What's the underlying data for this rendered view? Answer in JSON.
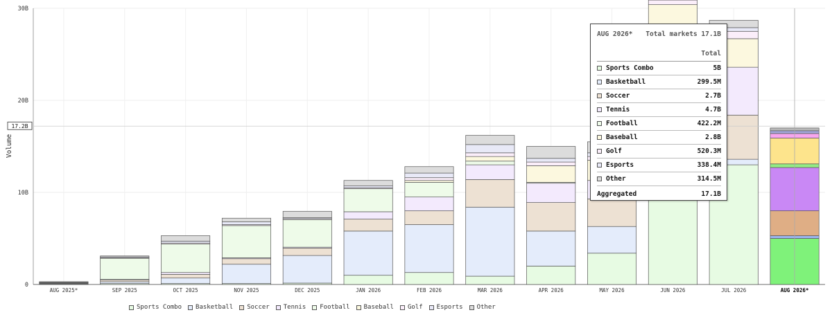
{
  "chart_data": {
    "type": "bar",
    "stacked": true,
    "ylabel": "Volume",
    "ylim": [
      0,
      30
    ],
    "yticks": [
      {
        "v": 0,
        "label": "0"
      },
      {
        "v": 10,
        "label": "10B"
      },
      {
        "v": 20,
        "label": "20B"
      },
      {
        "v": 30,
        "label": "30B"
      }
    ],
    "y_marker": {
      "value": 17.2,
      "label": "17.2B"
    },
    "categories": [
      "AUG 2025*",
      "SEP 2025",
      "OCT 2025",
      "NOV 2025",
      "DEC 2025",
      "JAN 2026",
      "FEB 2026",
      "MAR 2026",
      "APR 2026",
      "MAY 2026",
      "JUN 2026",
      "JUL 2026",
      "AUG 2026*"
    ],
    "highlighted_category": "AUG 2026*",
    "series": [
      {
        "name": "Sports Combo",
        "color": "#e7fbe3",
        "highlight_color": "#7ff27a",
        "values": [
          0.05,
          0.1,
          0.1,
          0.1,
          0.15,
          1.0,
          1.3,
          0.9,
          2.0,
          3.4,
          18.5,
          13.0,
          5.0
        ]
      },
      {
        "name": "Basketball",
        "color": "#e4ecfb",
        "highlight_color": "#9bb4f0",
        "values": [
          0.05,
          0.2,
          0.6,
          2.1,
          3.0,
          4.8,
          5.2,
          7.5,
          3.8,
          2.9,
          0.3,
          0.6,
          0.3
        ]
      },
      {
        "name": "Soccer",
        "color": "#ede1d3",
        "highlight_color": "#dfae85",
        "values": [
          0.05,
          0.2,
          0.4,
          0.6,
          0.8,
          1.3,
          1.5,
          3.0,
          3.1,
          3.0,
          3.2,
          4.8,
          2.7
        ]
      },
      {
        "name": "Tennis",
        "color": "#f3eafd",
        "highlight_color": "#c988f5",
        "values": [
          0.0,
          0.05,
          0.2,
          0.1,
          0.1,
          0.8,
          1.5,
          1.6,
          2.1,
          2.0,
          5.6,
          5.2,
          4.7
        ]
      },
      {
        "name": "Football",
        "color": "#eefbe9",
        "highlight_color": "#93ec84",
        "values": [
          0.05,
          2.3,
          3.1,
          3.5,
          3.0,
          2.5,
          1.6,
          0.4,
          0.1,
          0.0,
          0.0,
          0.0,
          0.4
        ]
      },
      {
        "name": "Baseball",
        "color": "#fcf8df",
        "highlight_color": "#fde48c",
        "values": [
          0.0,
          0.0,
          0.0,
          0.0,
          0.0,
          0.0,
          0.2,
          0.5,
          1.8,
          2.2,
          2.8,
          3.1,
          2.8
        ]
      },
      {
        "name": "Golf",
        "color": "#fbeefa",
        "highlight_color": "#f7a6ee",
        "values": [
          0.0,
          0.05,
          0.1,
          0.1,
          0.1,
          0.1,
          0.3,
          0.4,
          0.4,
          0.4,
          0.5,
          0.8,
          0.5
        ]
      },
      {
        "name": "Esports",
        "color": "#e8e9f7",
        "highlight_color": "#a4a8dc",
        "values": [
          0.05,
          0.1,
          0.2,
          0.3,
          0.1,
          0.2,
          0.5,
          0.9,
          0.4,
          0.4,
          0.5,
          0.4,
          0.3
        ]
      },
      {
        "name": "Other",
        "color": "#dcdcdc",
        "highlight_color": "#b8b8b8",
        "values": [
          0.05,
          0.1,
          0.6,
          0.4,
          0.7,
          0.6,
          0.7,
          1.0,
          1.3,
          1.2,
          0.7,
          0.8,
          0.3
        ]
      }
    ]
  },
  "legend": [
    "Sports Combo",
    "Basketball",
    "Soccer",
    "Tennis",
    "Football",
    "Baseball",
    "Golf",
    "Esports",
    "Other"
  ],
  "tooltip": {
    "month": "AUG 2026*",
    "total_markets": "Total markets 17.1B",
    "column": "Total",
    "rows": [
      {
        "name": "Sports Combo",
        "value": "5B"
      },
      {
        "name": "Basketball",
        "value": "299.5M"
      },
      {
        "name": "Soccer",
        "value": "2.7B"
      },
      {
        "name": "Tennis",
        "value": "4.7B"
      },
      {
        "name": "Football",
        "value": "422.2M"
      },
      {
        "name": "Baseball",
        "value": "2.8B"
      },
      {
        "name": "Golf",
        "value": "520.3M"
      },
      {
        "name": "Esports",
        "value": "338.4M"
      },
      {
        "name": "Other",
        "value": "314.5M"
      }
    ],
    "aggregated_label": "Aggregated",
    "aggregated_value": "17.1B"
  }
}
